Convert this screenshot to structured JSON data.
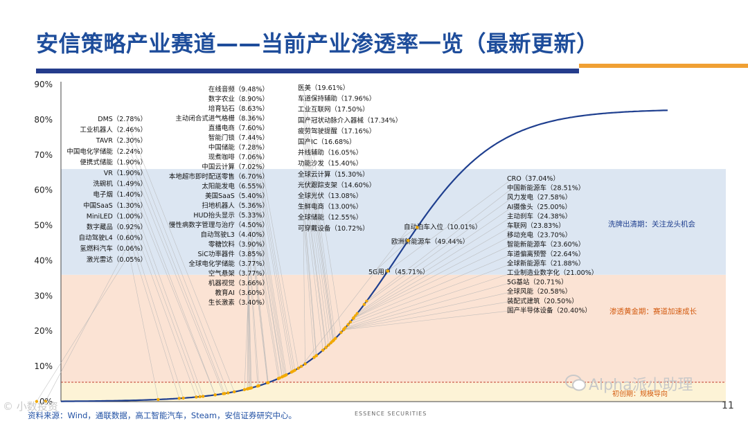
{
  "title": "安信策略产业赛道——当前产业渗透率一览（最新更新）",
  "page_number": "11",
  "source": "资料来源：Wind，通联数据，高工智能汽车，Steam，安信证券研究中心。",
  "footer_brand": "ESSENCE SECURITIES",
  "watermark_left": "© 小数投资",
  "watermark_right": "Alpha派小助理",
  "colors": {
    "title": "#1e4d9b",
    "bar_blue": "#243c8c",
    "bar_orange": "#f0a033",
    "zone_blue": "#dce6f2",
    "zone_orange": "#fbe3d4",
    "zone_yellow": "#fdf3d6",
    "curve": "#1f3f8f",
    "point": "#f2a900",
    "guide": "#b5b5b5",
    "ref_line": "#c0392b"
  },
  "chart_data": {
    "type": "scatter",
    "title": "",
    "xlabel": "",
    "ylabel": "",
    "ylim": [
      0,
      90
    ],
    "yticks": [
      "0%",
      "10%",
      "20%",
      "30%",
      "40%",
      "50%",
      "60%",
      "70%",
      "80%",
      "90%"
    ],
    "zones": [
      {
        "name": "初创期",
        "label": "初创期：规模导向",
        "from": 0,
        "to": 5.5
      },
      {
        "name": "渗透黄金期",
        "label": "渗透黄金期：赛道加速成长",
        "from": 5.5,
        "to": 36
      },
      {
        "name": "洗牌出清期",
        "label": "洗牌出清期：关注龙头机会",
        "from": 36,
        "to": 66
      }
    ],
    "points": [
      {
        "name": "DMS",
        "value": 2.78,
        "label": "DMS（2.78%）"
      },
      {
        "name": "工业机器人",
        "value": 2.46,
        "label": "工业机器人（2.46%）"
      },
      {
        "name": "TAVR",
        "value": 2.3,
        "label": "TAVR（2.30%）"
      },
      {
        "name": "中国电化学储能",
        "value": 2.24,
        "label": "中国电化学储能（2.24%）"
      },
      {
        "name": "便携式储能",
        "value": 1.9,
        "label": "便携式储能（1.90%）"
      },
      {
        "name": "VR",
        "value": 1.9,
        "label": "VR（1.90%）"
      },
      {
        "name": "洗碗机",
        "value": 1.49,
        "label": "洗碗机（1.49%）"
      },
      {
        "name": "电子烟",
        "value": 1.4,
        "label": "电子烟（1.40%）"
      },
      {
        "name": "中国SaaS",
        "value": 1.3,
        "label": "中国SaaS（1.30%）"
      },
      {
        "name": "MiniLED",
        "value": 1.0,
        "label": "MiniLED（1.00%）"
      },
      {
        "name": "数字藏品",
        "value": 0.92,
        "label": "数字藏品（0.92%）"
      },
      {
        "name": "自动驾驶L4",
        "value": 0.6,
        "label": "自动驾驶L4（0.60%）"
      },
      {
        "name": "氢燃料汽车",
        "value": 0.06,
        "label": "氢燃料汽车（0.06%）"
      },
      {
        "name": "激光雷达",
        "value": 0.05,
        "label": "激光雷达（0.05%）"
      },
      {
        "name": "在线音频",
        "value": 9.48,
        "label": "在线音频（9.48%）"
      },
      {
        "name": "数字农业",
        "value": 8.9,
        "label": "数字农业（8.90%）"
      },
      {
        "name": "培育钻石",
        "value": 8.63,
        "label": "培育钻石（8.63%）"
      },
      {
        "name": "主动闭合式进气格栅",
        "value": 8.36,
        "label": "主动闭合式进气格栅（8.36%）"
      },
      {
        "name": "直播电商",
        "value": 7.6,
        "label": "直播电商（7.60%）"
      },
      {
        "name": "智能门锁",
        "value": 7.44,
        "label": "智能门锁（7.44%）"
      },
      {
        "name": "中国储能",
        "value": 7.28,
        "label": "中国储能（7.28%）"
      },
      {
        "name": "现煮咖啡",
        "value": 7.06,
        "label": "现煮咖啡（7.06%）"
      },
      {
        "name": "中国云计算",
        "value": 7.02,
        "label": "中国云计算（7.02%）"
      },
      {
        "name": "本地超市即时配送零售",
        "value": 6.7,
        "label": "本地超市即时配送零售（6.70%）"
      },
      {
        "name": "太阳能发电",
        "value": 6.55,
        "label": "太阳能发电（6.55%）"
      },
      {
        "name": "美国SaaS",
        "value": 5.4,
        "label": "美国SaaS（5.40%）"
      },
      {
        "name": "扫地机器人",
        "value": 5.36,
        "label": "扫地机器人（5.36%）"
      },
      {
        "name": "HUD抬头显示",
        "value": 5.33,
        "label": "HUD抬头显示（5.33%）"
      },
      {
        "name": "慢性病数字管理与治疗",
        "value": 4.5,
        "label": "慢性病数字管理与治疗（4.50%）"
      },
      {
        "name": "自动驾驶L3",
        "value": 4.4,
        "label": "自动驾驶L3（4.40%）"
      },
      {
        "name": "零糖饮料",
        "value": 3.9,
        "label": "零糖饮料（3.90%）"
      },
      {
        "name": "SiC功率器件",
        "value": 3.85,
        "label": "SiC功率器件（3.85%）"
      },
      {
        "name": "全球电化学储能",
        "value": 3.77,
        "label": "全球电化学储能（3.77%）"
      },
      {
        "name": "空气悬架",
        "value": 3.77,
        "label": "空气悬架（3.77%）"
      },
      {
        "name": "机器视觉",
        "value": 3.66,
        "label": "机器视觉（3.66%）"
      },
      {
        "name": "教育AI",
        "value": 3.6,
        "label": "教育AI（3.60%）"
      },
      {
        "name": "生长激素",
        "value": 3.4,
        "label": "生长激素（3.40%）"
      },
      {
        "name": "医美",
        "value": 19.61,
        "label": "医美（19.61%）"
      },
      {
        "name": "车道保持辅助",
        "value": 17.96,
        "label": "车道保持辅助（17.96%）"
      },
      {
        "name": "工业互联网",
        "value": 17.5,
        "label": "工业互联网（17.50%）"
      },
      {
        "name": "国产冠状动脉介入器械",
        "value": 17.34,
        "label": "国产冠状动脉介入器械（17.34%）"
      },
      {
        "name": "疲劳驾驶提醒",
        "value": 17.16,
        "label": "疲劳驾驶提醒（17.16%）"
      },
      {
        "name": "国产IC",
        "value": 16.68,
        "label": "国产IC（16.68%）"
      },
      {
        "name": "并线辅助",
        "value": 16.05,
        "label": "并线辅助（16.05%）"
      },
      {
        "name": "功能沙发",
        "value": 15.4,
        "label": "功能沙发（15.40%）"
      },
      {
        "name": "全球云计算",
        "value": 15.3,
        "label": "全球云计算（15.30%）"
      },
      {
        "name": "光伏跟踪支架",
        "value": 14.6,
        "label": "光伏跟踪支架（14.60%）"
      },
      {
        "name": "全球光伏",
        "value": 13.08,
        "label": "全球光伏（13.08%）"
      },
      {
        "name": "生鲜电商",
        "value": 13.0,
        "label": "生鲜电商（13.00%）"
      },
      {
        "name": "全球储能",
        "value": 12.55,
        "label": "全球储能（12.55%）"
      },
      {
        "name": "可穿戴设备",
        "value": 10.72,
        "label": "可穿戴设备（10.72%）"
      },
      {
        "name": "自动泊车入位",
        "value": 10.01,
        "label": "自动泊车入位（10.01%）"
      },
      {
        "name": "欧洲新能源车",
        "value": 49.44,
        "label": "欧洲新能源车（49.44%）"
      },
      {
        "name": "5G用户",
        "value": 45.71,
        "label": "5G用户（45.71%）"
      },
      {
        "name": "CRO",
        "value": 37.04,
        "label": "CRO（37.04%）"
      },
      {
        "name": "中国新能源车",
        "value": 28.51,
        "label": "中国新能源车（28.51%）"
      },
      {
        "name": "风力发电",
        "value": 27.58,
        "label": "风力发电（27.58%）"
      },
      {
        "name": "AI摄像头",
        "value": 25.0,
        "label": "AI摄像头（25.00%）"
      },
      {
        "name": "主动刹车",
        "value": 24.38,
        "label": "主动刹车（24.38%）"
      },
      {
        "name": "车联网",
        "value": 23.83,
        "label": "车联网（23.83%）"
      },
      {
        "name": "移动充电",
        "value": 23.7,
        "label": "移动充电（23.70%）"
      },
      {
        "name": "智能新能源车",
        "value": 23.6,
        "label": "智能新能源车（23.60%）"
      },
      {
        "name": "车道偏离预警",
        "value": 22.64,
        "label": "车道偏离预警（22.64%）"
      },
      {
        "name": "全球新能源车",
        "value": 21.88,
        "label": "全球新能源车（21.88%）"
      },
      {
        "name": "工业制造业数字化",
        "value": 21.0,
        "label": "工业制造业数字化（21.00%）"
      },
      {
        "name": "5G基站",
        "value": 20.71,
        "label": "5G基站（20.71%）"
      },
      {
        "name": "全球风能",
        "value": 20.58,
        "label": "全球风能（20.58%）"
      },
      {
        "name": "装配式建筑",
        "value": 20.5,
        "label": "装配式建筑（20.50%）"
      },
      {
        "name": "国产半导体设备",
        "value": 20.4,
        "label": "国产半导体设备（20.40%）"
      }
    ]
  }
}
